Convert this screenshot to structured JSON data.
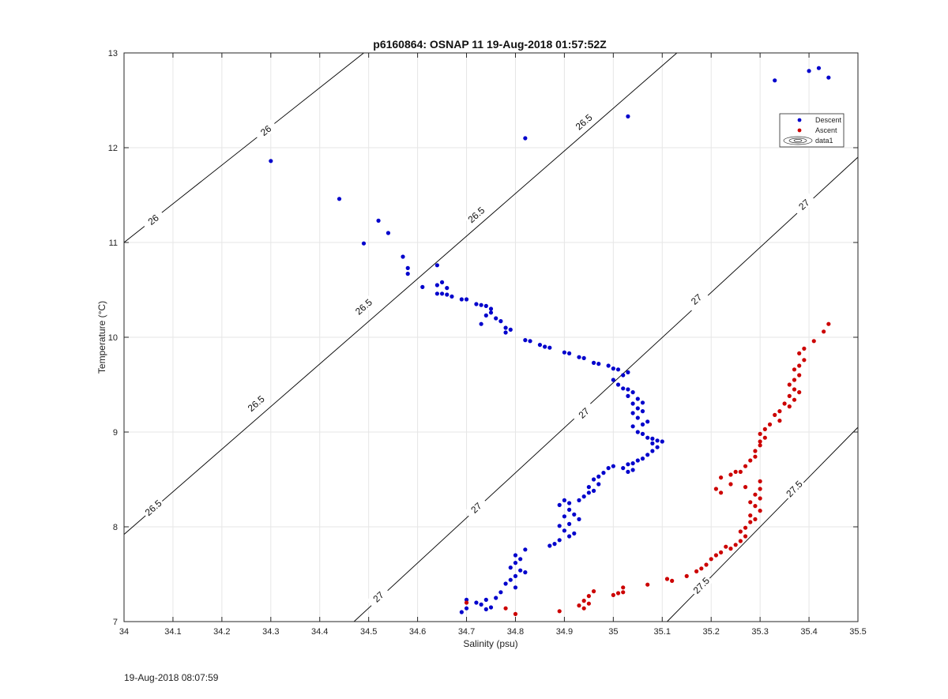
{
  "title": "p6160864: OSNAP 11 19-Aug-2018 01:57:52Z",
  "timestamp": "19-Aug-2018 08:07:59",
  "colors": {
    "descent": "#0000cc",
    "ascent": "#cc0000",
    "grid": "#e6e6e6",
    "axis": "#262626"
  },
  "chart_data": {
    "type": "scatter",
    "title": "p6160864: OSNAP 11 19-Aug-2018 01:57:52Z",
    "xlabel": "Salinity (psu)",
    "ylabel": "Temperature (°C)",
    "xlim": [
      34,
      35.5
    ],
    "ylim": [
      7,
      13
    ],
    "xticks": [
      "34",
      "34.1",
      "34.2",
      "34.3",
      "34.4",
      "34.5",
      "34.6",
      "34.7",
      "34.8",
      "34.9",
      "35",
      "35.1",
      "35.2",
      "35.3",
      "35.4",
      "35.5"
    ],
    "yticks": [
      "7",
      "8",
      "9",
      "10",
      "11",
      "12",
      "13"
    ],
    "grid": true,
    "legend": {
      "position": "top-right",
      "entries": [
        "Descent",
        "Ascent",
        "data1"
      ]
    },
    "isopycnals": [
      {
        "label": "26",
        "points": [
          [
            34.0,
            11.0
          ],
          [
            34.49,
            13.0
          ]
        ],
        "label_positions": [
          [
            34.06,
            11.24
          ],
          [
            34.29,
            12.18
          ]
        ]
      },
      {
        "label": "26.5",
        "points": [
          [
            34.0,
            7.92
          ],
          [
            35.13,
            13.0
          ]
        ],
        "label_positions": [
          [
            34.06,
            8.2
          ],
          [
            34.27,
            9.3
          ],
          [
            34.49,
            10.32
          ],
          [
            34.72,
            11.29
          ],
          [
            34.94,
            12.27
          ]
        ]
      },
      {
        "label": "27",
        "points": [
          [
            34.47,
            7.0
          ],
          [
            35.5,
            11.9
          ]
        ],
        "label_positions": [
          [
            34.52,
            7.26
          ],
          [
            34.72,
            8.2
          ],
          [
            34.94,
            9.2
          ],
          [
            35.17,
            10.4
          ],
          [
            35.39,
            11.4
          ]
        ]
      },
      {
        "label": "27.5",
        "points": [
          [
            35.11,
            7.0
          ],
          [
            35.5,
            9.05
          ]
        ],
        "label_positions": [
          [
            35.18,
            7.38
          ],
          [
            35.37,
            8.4
          ]
        ]
      }
    ],
    "series": [
      {
        "name": "Descent",
        "color": "#0000cc",
        "points": [
          [
            35.33,
            12.71
          ],
          [
            35.4,
            12.81
          ],
          [
            35.42,
            12.84
          ],
          [
            35.44,
            12.74
          ],
          [
            35.03,
            12.33
          ],
          [
            34.82,
            12.1
          ],
          [
            34.3,
            11.86
          ],
          [
            34.44,
            11.46
          ],
          [
            34.52,
            11.23
          ],
          [
            34.54,
            11.1
          ],
          [
            34.49,
            10.99
          ],
          [
            34.57,
            10.85
          ],
          [
            34.58,
            10.73
          ],
          [
            34.58,
            10.67
          ],
          [
            34.64,
            10.76
          ],
          [
            34.61,
            10.53
          ],
          [
            34.64,
            10.55
          ],
          [
            34.65,
            10.58
          ],
          [
            34.66,
            10.52
          ],
          [
            34.64,
            10.46
          ],
          [
            34.65,
            10.46
          ],
          [
            34.66,
            10.45
          ],
          [
            34.67,
            10.43
          ],
          [
            34.69,
            10.4
          ],
          [
            34.7,
            10.4
          ],
          [
            34.72,
            10.35
          ],
          [
            34.73,
            10.34
          ],
          [
            34.74,
            10.33
          ],
          [
            34.75,
            10.3
          ],
          [
            34.75,
            10.26
          ],
          [
            34.74,
            10.23
          ],
          [
            34.76,
            10.2
          ],
          [
            34.73,
            10.14
          ],
          [
            34.77,
            10.17
          ],
          [
            34.78,
            10.1
          ],
          [
            34.79,
            10.08
          ],
          [
            34.78,
            10.05
          ],
          [
            34.82,
            9.97
          ],
          [
            34.83,
            9.96
          ],
          [
            34.85,
            9.92
          ],
          [
            34.86,
            9.9
          ],
          [
            34.87,
            9.89
          ],
          [
            34.9,
            9.84
          ],
          [
            34.91,
            9.83
          ],
          [
            34.93,
            9.79
          ],
          [
            34.94,
            9.78
          ],
          [
            34.96,
            9.73
          ],
          [
            34.97,
            9.72
          ],
          [
            34.99,
            9.7
          ],
          [
            35.0,
            9.67
          ],
          [
            35.01,
            9.66
          ],
          [
            35.02,
            9.6
          ],
          [
            35.03,
            9.63
          ],
          [
            35.0,
            9.55
          ],
          [
            35.01,
            9.5
          ],
          [
            35.02,
            9.46
          ],
          [
            35.03,
            9.45
          ],
          [
            35.04,
            9.42
          ],
          [
            35.03,
            9.38
          ],
          [
            35.05,
            9.35
          ],
          [
            35.04,
            9.3
          ],
          [
            35.06,
            9.31
          ],
          [
            35.05,
            9.25
          ],
          [
            35.04,
            9.2
          ],
          [
            35.06,
            9.22
          ],
          [
            35.05,
            9.15
          ],
          [
            35.07,
            9.11
          ],
          [
            35.06,
            9.08
          ],
          [
            35.04,
            9.06
          ],
          [
            35.05,
            9.0
          ],
          [
            35.06,
            8.98
          ],
          [
            35.07,
            8.94
          ],
          [
            35.08,
            8.93
          ],
          [
            35.09,
            8.91
          ],
          [
            35.1,
            8.9
          ],
          [
            35.08,
            8.88
          ],
          [
            35.09,
            8.84
          ],
          [
            35.08,
            8.8
          ],
          [
            35.07,
            8.76
          ],
          [
            35.06,
            8.72
          ],
          [
            35.05,
            8.7
          ],
          [
            35.03,
            8.66
          ],
          [
            35.04,
            8.67
          ],
          [
            35.02,
            8.62
          ],
          [
            35.03,
            8.58
          ],
          [
            35.04,
            8.6
          ],
          [
            35.0,
            8.64
          ],
          [
            34.99,
            8.62
          ],
          [
            34.98,
            8.57
          ],
          [
            34.97,
            8.53
          ],
          [
            34.96,
            8.5
          ],
          [
            34.97,
            8.45
          ],
          [
            34.95,
            8.42
          ],
          [
            34.96,
            8.38
          ],
          [
            34.95,
            8.36
          ],
          [
            34.94,
            8.32
          ],
          [
            34.93,
            8.28
          ],
          [
            34.91,
            8.25
          ],
          [
            34.9,
            8.28
          ],
          [
            34.89,
            8.23
          ],
          [
            34.91,
            8.18
          ],
          [
            34.92,
            8.13
          ],
          [
            34.9,
            8.11
          ],
          [
            34.93,
            8.08
          ],
          [
            34.91,
            8.03
          ],
          [
            34.89,
            8.01
          ],
          [
            34.9,
            7.96
          ],
          [
            34.92,
            7.93
          ],
          [
            34.91,
            7.9
          ],
          [
            34.89,
            7.86
          ],
          [
            34.88,
            7.82
          ],
          [
            34.87,
            7.8
          ],
          [
            34.82,
            7.76
          ],
          [
            34.8,
            7.7
          ],
          [
            34.81,
            7.66
          ],
          [
            34.8,
            7.62
          ],
          [
            34.79,
            7.57
          ],
          [
            34.81,
            7.54
          ],
          [
            34.82,
            7.52
          ],
          [
            34.8,
            7.48
          ],
          [
            34.79,
            7.44
          ],
          [
            34.78,
            7.4
          ],
          [
            34.8,
            7.36
          ],
          [
            34.77,
            7.31
          ],
          [
            34.76,
            7.25
          ],
          [
            34.74,
            7.23
          ],
          [
            34.73,
            7.18
          ],
          [
            34.75,
            7.15
          ],
          [
            34.74,
            7.13
          ],
          [
            34.72,
            7.2
          ],
          [
            34.7,
            7.23
          ],
          [
            34.7,
            7.14
          ],
          [
            34.69,
            7.1
          ]
        ]
      },
      {
        "name": "Ascent",
        "color": "#cc0000",
        "points": [
          [
            35.44,
            10.14
          ],
          [
            35.43,
            10.06
          ],
          [
            35.41,
            9.96
          ],
          [
            35.39,
            9.88
          ],
          [
            35.38,
            9.83
          ],
          [
            35.39,
            9.76
          ],
          [
            35.38,
            9.7
          ],
          [
            35.37,
            9.66
          ],
          [
            35.38,
            9.6
          ],
          [
            35.37,
            9.55
          ],
          [
            35.36,
            9.5
          ],
          [
            35.37,
            9.45
          ],
          [
            35.38,
            9.42
          ],
          [
            35.36,
            9.38
          ],
          [
            35.37,
            9.34
          ],
          [
            35.35,
            9.3
          ],
          [
            35.36,
            9.27
          ],
          [
            35.34,
            9.22
          ],
          [
            35.33,
            9.18
          ],
          [
            35.34,
            9.12
          ],
          [
            35.32,
            9.08
          ],
          [
            35.31,
            9.03
          ],
          [
            35.3,
            8.98
          ],
          [
            35.31,
            8.94
          ],
          [
            35.3,
            8.9
          ],
          [
            35.3,
            8.86
          ],
          [
            35.29,
            8.8
          ],
          [
            35.29,
            8.74
          ],
          [
            35.28,
            8.7
          ],
          [
            35.27,
            8.64
          ],
          [
            35.26,
            8.58
          ],
          [
            35.25,
            8.58
          ],
          [
            35.24,
            8.55
          ],
          [
            35.22,
            8.52
          ],
          [
            35.21,
            8.4
          ],
          [
            35.22,
            8.36
          ],
          [
            35.24,
            8.45
          ],
          [
            35.27,
            8.42
          ],
          [
            35.3,
            8.48
          ],
          [
            35.3,
            8.4
          ],
          [
            35.29,
            8.34
          ],
          [
            35.3,
            8.3
          ],
          [
            35.28,
            8.26
          ],
          [
            35.29,
            8.22
          ],
          [
            35.3,
            8.17
          ],
          [
            35.28,
            8.12
          ],
          [
            35.29,
            8.08
          ],
          [
            35.28,
            8.05
          ],
          [
            35.27,
            7.99
          ],
          [
            35.26,
            7.95
          ],
          [
            35.27,
            7.9
          ],
          [
            35.26,
            7.85
          ],
          [
            35.25,
            7.81
          ],
          [
            35.23,
            7.79
          ],
          [
            35.24,
            7.77
          ],
          [
            35.22,
            7.73
          ],
          [
            35.21,
            7.7
          ],
          [
            35.2,
            7.66
          ],
          [
            35.19,
            7.6
          ],
          [
            35.18,
            7.56
          ],
          [
            35.17,
            7.53
          ],
          [
            35.15,
            7.48
          ],
          [
            35.11,
            7.45
          ],
          [
            35.12,
            7.43
          ],
          [
            35.07,
            7.39
          ],
          [
            35.02,
            7.36
          ],
          [
            35.02,
            7.31
          ],
          [
            35.01,
            7.3
          ],
          [
            35.0,
            7.28
          ],
          [
            34.96,
            7.32
          ],
          [
            34.95,
            7.27
          ],
          [
            34.94,
            7.22
          ],
          [
            34.95,
            7.19
          ],
          [
            34.93,
            7.17
          ],
          [
            34.94,
            7.14
          ],
          [
            34.89,
            7.11
          ],
          [
            34.78,
            7.14
          ],
          [
            34.8,
            7.08
          ],
          [
            34.7,
            7.2
          ]
        ]
      }
    ]
  }
}
